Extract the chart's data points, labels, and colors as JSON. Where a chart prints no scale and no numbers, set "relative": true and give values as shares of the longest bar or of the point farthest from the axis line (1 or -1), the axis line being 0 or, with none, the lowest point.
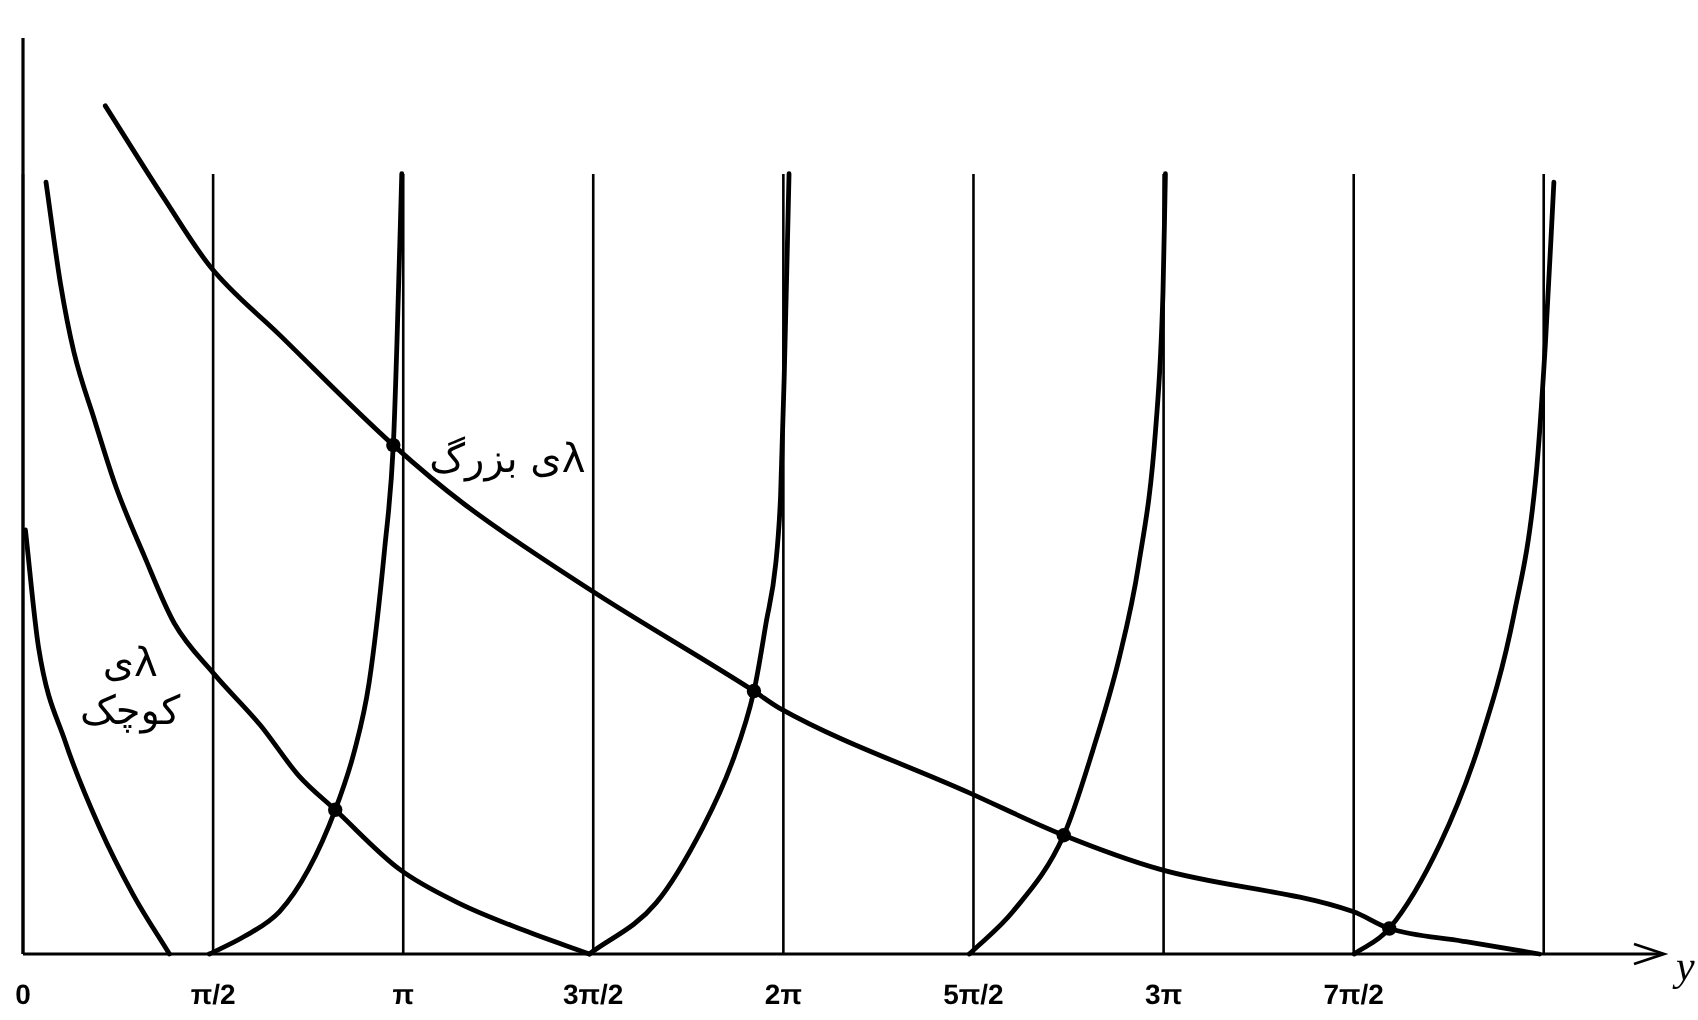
{
  "chart_data": {
    "type": "line",
    "relative": true,
    "grid": "x",
    "xlabel": "y",
    "xlim": [
      0,
      13.56
    ],
    "xticks": [
      0,
      {
        "value": 1.571,
        "label": "π/2"
      },
      {
        "value": 3.142,
        "label": "π"
      },
      {
        "value": 4.712,
        "label": "3π/2"
      },
      {
        "value": 6.283,
        "label": "2π"
      },
      {
        "value": 7.854,
        "label": "5π/2"
      },
      {
        "value": 9.425,
        "label": "3π"
      },
      {
        "value": 10.996,
        "label": "7π/2"
      },
      {
        "value": 12.566,
        "label": null
      }
    ],
    "series": [
      {
        "color": "#000000",
        "x": [
          0.02,
          0.13,
          0.35,
          0.63,
          0.91,
          1.21
        ],
        "values": [
          0.5,
          0.36,
          0.25,
          0.15,
          0.07,
          0
        ]
      },
      {
        "color": "#000000",
        "x": [
          1.54,
          1.82,
          2.12,
          2.36,
          2.58,
          2.74,
          2.86,
          2.99,
          3.06,
          3.09,
          3.13
        ],
        "values": [
          0,
          0.02,
          0.05,
          0.1,
          0.17,
          0.24,
          0.32,
          0.48,
          0.6,
          0.72,
          0.92
        ]
      },
      {
        "color": "#000000",
        "x": [
          4.68,
          5.23,
          5.62,
          5.87,
          6.04,
          6.14,
          6.22,
          6.26,
          6.29,
          6.33
        ],
        "values": [
          0,
          0.06,
          0.15,
          0.23,
          0.31,
          0.39,
          0.46,
          0.54,
          0.68,
          0.92
        ]
      },
      {
        "color": "#000000",
        "x": [
          7.82,
          8.18,
          8.6,
          8.84,
          9.06,
          9.22,
          9.36,
          9.42,
          9.44
        ],
        "values": [
          0,
          0.05,
          0.14,
          0.24,
          0.35,
          0.46,
          0.62,
          0.78,
          0.92
        ]
      },
      {
        "color": "#000000",
        "x": [
          11.0,
          11.29,
          11.71,
          12.04,
          12.32,
          12.5,
          12.58,
          12.65
        ],
        "values": [
          0,
          0.03,
          0.13,
          0.25,
          0.4,
          0.56,
          0.72,
          0.91
        ]
      },
      {
        "name": "λی کوچک",
        "color": "#000000",
        "x": [
          0.19,
          0.31,
          0.42,
          0.59,
          0.77,
          1.0,
          1.25,
          1.58,
          1.96,
          2.28,
          2.58,
          3.11,
          3.6,
          4.1,
          4.68
        ],
        "values": [
          0.91,
          0.79,
          0.71,
          0.63,
          0.55,
          0.47,
          0.39,
          0.33,
          0.27,
          0.21,
          0.17,
          0.1,
          0.06,
          0.03,
          0
        ]
      },
      {
        "name": "λی بزرگ",
        "color": "#000000",
        "x": [
          0.68,
          1.17,
          1.55,
          2.12,
          3.06,
          3.65,
          4.68,
          6.04,
          6.25,
          7.82,
          8.6,
          9.39,
          10.99,
          11.29,
          11.9,
          12.53
        ],
        "values": [
          1.0,
          0.89,
          0.81,
          0.73,
          0.6,
          0.53,
          0.43,
          0.31,
          0.29,
          0.19,
          0.14,
          0.1,
          0.05,
          0.03,
          0.015,
          0
        ]
      },
      {
        "type": "scatter",
        "marker": "circle",
        "color": "#000000",
        "x": [
          2.58,
          3.06,
          6.04,
          8.6,
          11.29
        ],
        "values": [
          0.17,
          0.6,
          0.31,
          0.14,
          0.03
        ]
      }
    ]
  }
}
